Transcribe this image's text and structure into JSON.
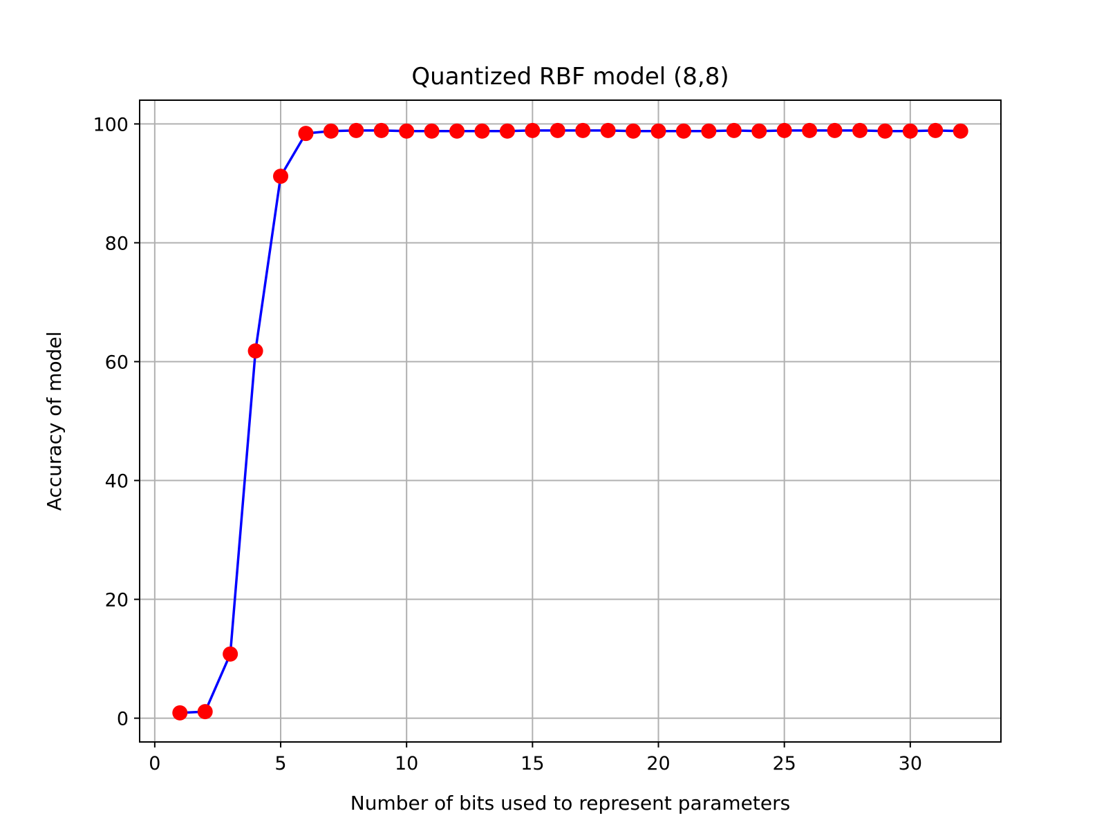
{
  "chart_data": {
    "type": "line",
    "title": "Quantized RBF model (8,8)",
    "xlabel": "Number of bits used to represent parameters",
    "ylabel": "Accuracy of model",
    "xlim": [
      -0.6,
      33.6
    ],
    "ylim": [
      -4,
      104
    ],
    "xticks": [
      0,
      5,
      10,
      15,
      20,
      25,
      30
    ],
    "yticks": [
      0,
      20,
      40,
      60,
      80,
      100
    ],
    "grid": true,
    "line_color": "#0000ff",
    "marker_color": "#ff0000",
    "x": [
      1,
      2,
      3,
      4,
      5,
      6,
      7,
      8,
      9,
      10,
      11,
      12,
      13,
      14,
      15,
      16,
      17,
      18,
      19,
      20,
      21,
      22,
      23,
      24,
      25,
      26,
      27,
      28,
      29,
      30,
      31,
      32
    ],
    "series": [
      {
        "values": [
          0.9,
          1.1,
          10.8,
          61.8,
          91.2,
          98.4,
          98.8,
          98.9,
          98.9,
          98.8,
          98.8,
          98.8,
          98.8,
          98.8,
          98.9,
          98.9,
          98.9,
          98.9,
          98.8,
          98.8,
          98.8,
          98.8,
          98.9,
          98.8,
          98.9,
          98.9,
          98.9,
          98.9,
          98.8,
          98.8,
          98.9,
          98.8
        ]
      }
    ]
  }
}
